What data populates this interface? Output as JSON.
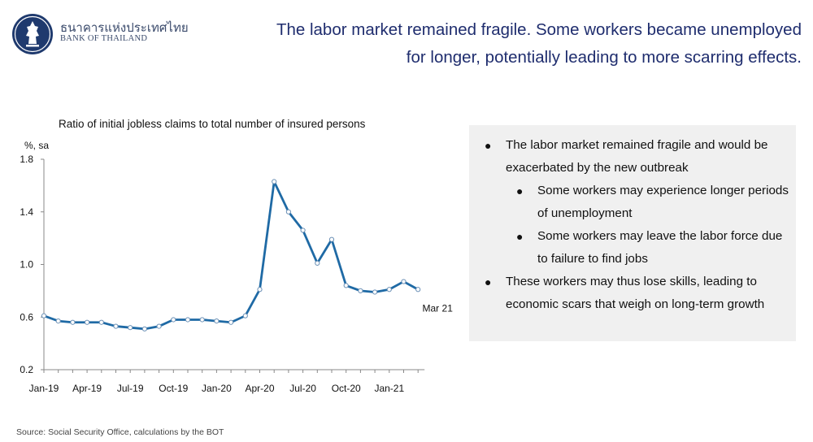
{
  "header": {
    "brand_thai": "ธนาคารแห่งประเทศไทย",
    "brand_english": "BANK OF THAILAND",
    "headline_line1": "The labor market remained fragile. Some workers became unemployed",
    "headline_line2": "for longer, potentially leading to more scarring effects."
  },
  "colors": {
    "headline": "#1f2d6e",
    "series": "#1f6aa5",
    "panel_bg": "#f0f0f0"
  },
  "chart_data": {
    "type": "line",
    "title": "Ratio of initial jobless claims to total number of insured persons",
    "ylabel": "%, sa",
    "xlabel": "",
    "ylim": [
      0.2,
      1.8
    ],
    "y_ticks": [
      "0.2",
      "0.6",
      "1.0",
      "1.4",
      "1.8"
    ],
    "x_tick_labels": [
      "Jan-19",
      "Apr-19",
      "Jul-19",
      "Oct-19",
      "Jan-20",
      "Apr-20",
      "Jul-20",
      "Oct-20",
      "Jan-21"
    ],
    "annotation": "Mar 21",
    "grid": false,
    "series": [
      {
        "x": [
          "Jan-19",
          "Feb-19",
          "Mar-19",
          "Apr-19",
          "May-19",
          "Jun-19",
          "Jul-19",
          "Aug-19",
          "Sep-19",
          "Oct-19",
          "Nov-19",
          "Dec-19",
          "Jan-20",
          "Feb-20",
          "Mar-20",
          "Apr-20",
          "May-20",
          "Jun-20",
          "Jul-20",
          "Aug-20",
          "Sep-20",
          "Oct-20",
          "Nov-20",
          "Dec-20",
          "Jan-21",
          "Feb-21",
          "Mar-21"
        ],
        "values": [
          0.61,
          0.57,
          0.56,
          0.56,
          0.56,
          0.53,
          0.52,
          0.51,
          0.53,
          0.58,
          0.58,
          0.58,
          0.57,
          0.56,
          0.61,
          0.81,
          1.63,
          1.4,
          1.26,
          1.01,
          1.19,
          0.84,
          0.8,
          0.79,
          0.81,
          0.87,
          0.81
        ]
      }
    ]
  },
  "panel": {
    "bullet1": "The labor market remained fragile and would be exacerbated by the new outbreak",
    "bullet1a": "Some workers may experience longer periods of unemployment",
    "bullet1b": "Some workers may leave the labor force due to failure to find jobs",
    "bullet2": "These workers may thus lose skills, leading to economic scars that weigh on long-term growth"
  },
  "source": "Source: Social Security Office, calculations by the BOT"
}
